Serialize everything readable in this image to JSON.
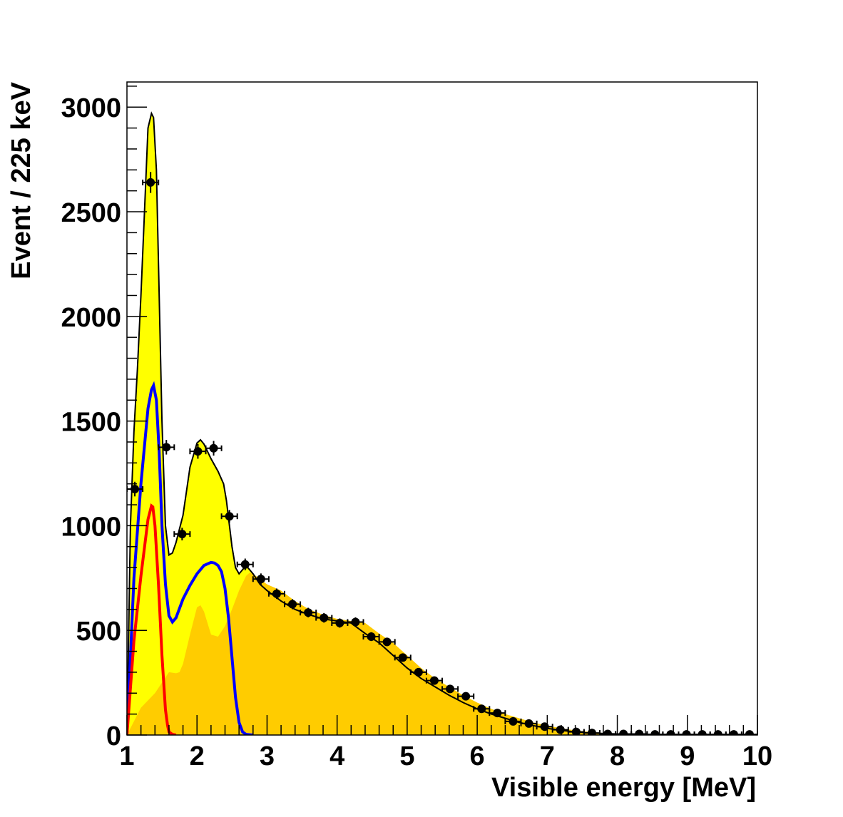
{
  "chart_data": {
    "type": "scatter",
    "title": "",
    "xlabel": "Visible energy [MeV]",
    "ylabel": "Event / 225 keV",
    "xlim": [
      1,
      10
    ],
    "ylim": [
      0,
      3120
    ],
    "xticks": [
      1,
      2,
      3,
      4,
      5,
      6,
      7,
      8,
      9,
      10
    ],
    "yticks": [
      0,
      500,
      1000,
      1500,
      2000,
      2500,
      3000
    ],
    "xtick_labels": [
      "1",
      "2",
      "3",
      "4",
      "5",
      "6",
      "7",
      "8",
      "9",
      "10"
    ],
    "ytick_labels": [
      "0",
      "500",
      "1000",
      "1500",
      "2000",
      "2500",
      "3000"
    ],
    "grid": false,
    "legend": "none",
    "colors": {
      "total_fill": "#ffff00",
      "background_fill": "#ffcc00",
      "total_line": "#000000",
      "blue_line": "#0000ff",
      "red_line": "#ff0000",
      "points": "#000000"
    },
    "x_bin_halfwidth": 0.1125,
    "series": [
      {
        "kind": "points",
        "x": [
          1.1125,
          1.3375,
          1.5625,
          1.7875,
          2.0125,
          2.2375,
          2.4625,
          2.6875,
          2.9125,
          3.1375,
          3.3625,
          3.5875,
          3.8125,
          4.0375,
          4.2625,
          4.4875,
          4.7125,
          4.9375,
          5.1625,
          5.3875,
          5.6125,
          5.8375,
          6.0625,
          6.2875,
          6.5125,
          6.7375,
          6.9625,
          7.1875,
          7.4125,
          7.6375,
          7.8625,
          8.0875,
          8.3125,
          8.5375,
          8.7625,
          8.9875,
          9.2125,
          9.4375,
          9.6625,
          9.8875
        ],
        "y": [
          1175,
          2640,
          1375,
          960,
          1355,
          1370,
          1045,
          815,
          745,
          675,
          625,
          585,
          560,
          535,
          540,
          470,
          445,
          370,
          300,
          260,
          220,
          185,
          125,
          105,
          65,
          55,
          40,
          25,
          15,
          10,
          5,
          5,
          5,
          3,
          3,
          3,
          3,
          3,
          3,
          3
        ],
        "yerr": [
          35,
          50,
          35,
          30,
          35,
          35,
          30,
          28,
          27,
          25,
          24,
          23,
          23,
          22,
          22,
          21,
          20,
          18,
          17,
          16,
          15,
          13,
          11,
          10,
          8,
          7,
          6,
          5,
          4,
          3,
          2,
          2,
          2,
          2,
          2,
          2,
          2,
          2,
          2,
          2
        ]
      },
      {
        "kind": "total-curve",
        "x": [
          1.0,
          1.05,
          1.1,
          1.15,
          1.2,
          1.25,
          1.3,
          1.35,
          1.38,
          1.42,
          1.46,
          1.5,
          1.55,
          1.6,
          1.65,
          1.7,
          1.8,
          1.9,
          2.0,
          2.05,
          2.1,
          2.2,
          2.3,
          2.38,
          2.42,
          2.5,
          2.55,
          2.6,
          2.65,
          2.7,
          2.8,
          2.9,
          3.0,
          3.2,
          3.4,
          3.6,
          3.8,
          4.0,
          4.2,
          4.4,
          4.6,
          4.8,
          5.0,
          5.2,
          5.4,
          5.6,
          5.8,
          6.0,
          6.2,
          6.4,
          6.6,
          6.8,
          7.0,
          7.2,
          7.4,
          7.6,
          7.8,
          8.0,
          8.5,
          9.0,
          9.5,
          10.0
        ],
        "y": [
          0,
          1000,
          1450,
          1750,
          2100,
          2500,
          2900,
          2970,
          2950,
          2700,
          2100,
          1500,
          1000,
          860,
          870,
          920,
          1050,
          1280,
          1395,
          1410,
          1390,
          1320,
          1260,
          1200,
          1120,
          900,
          800,
          770,
          790,
          810,
          770,
          720,
          690,
          640,
          600,
          575,
          555,
          545,
          535,
          485,
          440,
          380,
          320,
          270,
          230,
          190,
          155,
          125,
          100,
          80,
          60,
          45,
          32,
          22,
          15,
          10,
          7,
          5,
          3,
          2,
          1,
          0
        ]
      },
      {
        "kind": "background-fill",
        "x": [
          1.0,
          1.2,
          1.4,
          1.6,
          1.7,
          1.75,
          1.8,
          1.9,
          2.0,
          2.05,
          2.1,
          2.2,
          2.3,
          2.4,
          2.5,
          2.6,
          2.7,
          2.75,
          2.8,
          3.0,
          3.2,
          3.4,
          3.6,
          3.8,
          4.0,
          4.2,
          4.4,
          4.6,
          4.8,
          5.0,
          5.2,
          5.4,
          5.6,
          5.8,
          6.0,
          6.2,
          6.4,
          6.6,
          6.8,
          7.0,
          7.2,
          7.4,
          7.6,
          7.8,
          8.0,
          8.5,
          9.0,
          9.5,
          10.0
        ],
        "y": [
          0,
          130,
          200,
          300,
          295,
          300,
          340,
          480,
          610,
          620,
          590,
          480,
          470,
          520,
          600,
          690,
          760,
          775,
          770,
          720,
          690,
          640,
          600,
          575,
          555,
          545,
          535,
          485,
          440,
          380,
          320,
          270,
          230,
          190,
          155,
          125,
          100,
          80,
          60,
          45,
          32,
          22,
          15,
          10,
          7,
          5,
          3,
          1,
          0
        ]
      },
      {
        "kind": "blue-curve",
        "x": [
          1.0,
          1.1,
          1.2,
          1.3,
          1.35,
          1.38,
          1.42,
          1.46,
          1.5,
          1.55,
          1.6,
          1.65,
          1.7,
          1.8,
          1.9,
          2.0,
          2.1,
          2.2,
          2.25,
          2.3,
          2.35,
          2.4,
          2.45,
          2.5,
          2.55,
          2.6,
          2.65,
          2.7,
          2.8
        ],
        "y": [
          0,
          750,
          1200,
          1560,
          1650,
          1670,
          1600,
          1350,
          1000,
          720,
          570,
          540,
          560,
          650,
          715,
          770,
          810,
          825,
          822,
          810,
          780,
          700,
          560,
          370,
          180,
          60,
          15,
          3,
          0
        ]
      },
      {
        "kind": "red-curve",
        "x": [
          1.0,
          1.1,
          1.2,
          1.3,
          1.35,
          1.37,
          1.4,
          1.45,
          1.5,
          1.55,
          1.58,
          1.6,
          1.65,
          1.7
        ],
        "y": [
          0,
          450,
          760,
          1030,
          1095,
          1090,
          1000,
          720,
          380,
          120,
          45,
          15,
          3,
          0
        ]
      }
    ]
  }
}
